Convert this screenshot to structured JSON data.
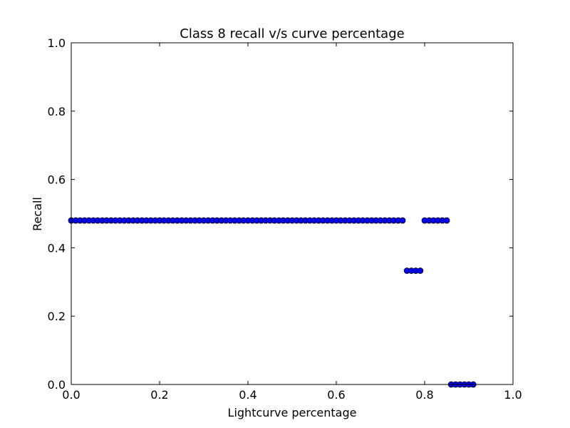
{
  "chart_data": {
    "type": "scatter",
    "title": "Class 8 recall v/s curve percentage",
    "xlabel": "Lightcurve percentage",
    "ylabel": "Recall",
    "xlim": [
      0.0,
      1.0
    ],
    "ylim": [
      0.0,
      1.0
    ],
    "xticks": [
      0.0,
      0.2,
      0.4,
      0.6,
      0.8,
      1.0
    ],
    "yticks": [
      0.0,
      0.2,
      0.4,
      0.6,
      0.8,
      1.0
    ],
    "xtick_labels": [
      "0.0",
      "0.2",
      "0.4",
      "0.6",
      "0.8",
      "1.0"
    ],
    "ytick_labels": [
      "0.0",
      "0.2",
      "0.4",
      "0.6",
      "0.8",
      "1.0"
    ],
    "grid": false,
    "marker_color": "#0000ff",
    "marker_edge_color": "#000000",
    "series": [
      {
        "groups": [
          {
            "x_start": 0.0,
            "x_end": 0.75,
            "x_step": 0.01,
            "y": 0.48
          },
          {
            "x_start": 0.76,
            "x_end": 0.79,
            "x_step": 0.01,
            "y": 0.333
          },
          {
            "x_start": 0.8,
            "x_end": 0.85,
            "x_step": 0.01,
            "y": 0.48
          },
          {
            "x_start": 0.86,
            "x_end": 0.91,
            "x_step": 0.01,
            "y": 0.0
          }
        ]
      }
    ]
  }
}
